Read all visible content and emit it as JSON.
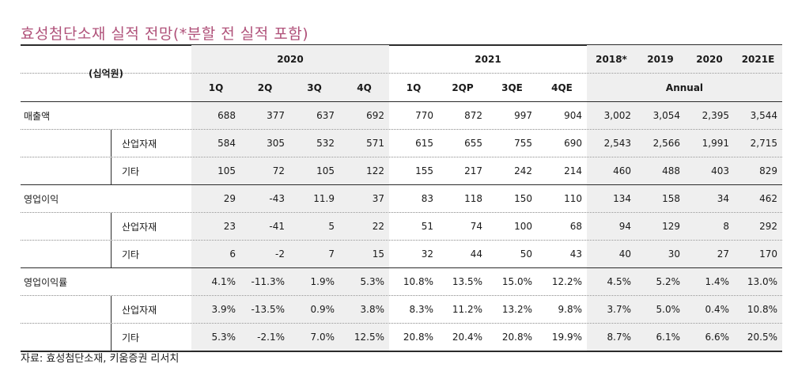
{
  "title": "효성첨단소재 실적 전망(*분할 전 실적 포함)",
  "header": {
    "unit": "(십억원)",
    "year_2020": "2020",
    "year_2021": "2021",
    "annual_years": [
      "2018*",
      "2019",
      "2020",
      "2021E"
    ],
    "quarters_2020": [
      "1Q",
      "2Q",
      "3Q",
      "4Q"
    ],
    "quarters_2021": [
      "1Q",
      "2QP",
      "3QE",
      "4QE"
    ],
    "annual_label": "Annual"
  },
  "rows": [
    {
      "label": "매출액",
      "values": [
        "688",
        "377",
        "637",
        "692",
        "770",
        "872",
        "997",
        "904",
        "3,002",
        "3,054",
        "2,395",
        "3,544"
      ]
    },
    {
      "sublabel": "산업자재",
      "values": [
        "584",
        "305",
        "532",
        "571",
        "615",
        "655",
        "755",
        "690",
        "2,543",
        "2,566",
        "1,991",
        "2,715"
      ]
    },
    {
      "sublabel": "기타",
      "values": [
        "105",
        "72",
        "105",
        "122",
        "155",
        "217",
        "242",
        "214",
        "460",
        "488",
        "403",
        "829"
      ]
    },
    {
      "label": "영업이익",
      "values": [
        "29",
        "-43",
        "11.9",
        "37",
        "83",
        "118",
        "150",
        "110",
        "134",
        "158",
        "34",
        "462"
      ]
    },
    {
      "sublabel": "산업자재",
      "values": [
        "23",
        "-41",
        "5",
        "22",
        "51",
        "74",
        "100",
        "68",
        "94",
        "129",
        "8",
        "292"
      ]
    },
    {
      "sublabel": "기타",
      "values": [
        "6",
        "-2",
        "7",
        "15",
        "32",
        "44",
        "50",
        "43",
        "40",
        "30",
        "27",
        "170"
      ]
    },
    {
      "label": "영업이익률",
      "values": [
        "4.1%",
        "-11.3%",
        "1.9%",
        "5.3%",
        "10.8%",
        "13.5%",
        "15.0%",
        "12.2%",
        "4.5%",
        "5.2%",
        "1.4%",
        "13.0%"
      ]
    },
    {
      "sublabel": "산업자재",
      "values": [
        "3.9%",
        "-13.5%",
        "0.9%",
        "3.8%",
        "8.3%",
        "11.2%",
        "13.2%",
        "9.8%",
        "3.7%",
        "5.0%",
        "0.4%",
        "10.8%"
      ]
    },
    {
      "sublabel": "기타",
      "values": [
        "5.3%",
        "-2.1%",
        "7.0%",
        "12.5%",
        "20.8%",
        "20.4%",
        "20.8%",
        "19.9%",
        "8.7%",
        "6.1%",
        "6.6%",
        "20.5%"
      ]
    }
  ],
  "source": "자료: 효성첨단소재, 키움증권 리서치"
}
